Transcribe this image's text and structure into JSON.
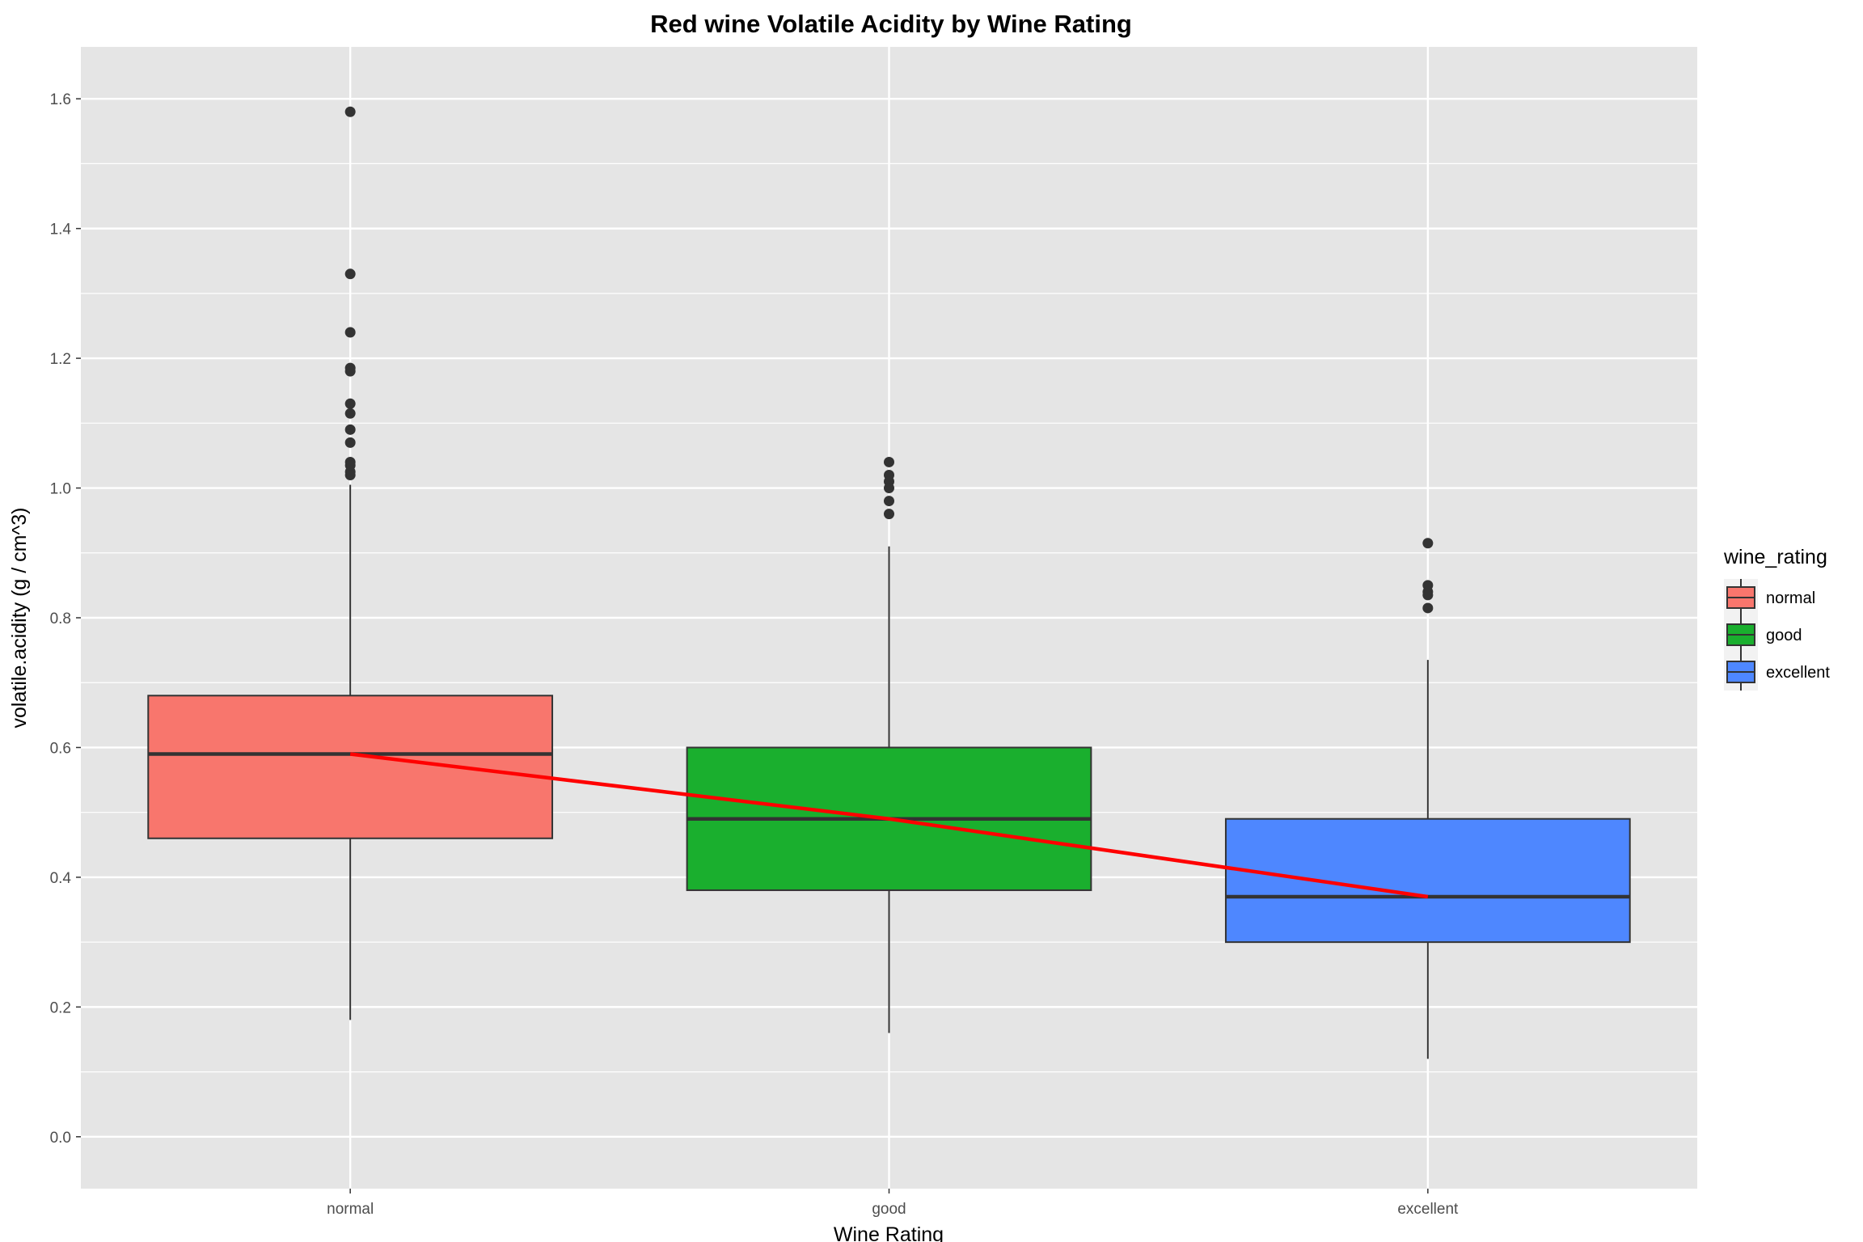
{
  "chart_data": {
    "type": "box",
    "title": "Red wine Volatile Acidity by Wine Rating",
    "xlabel": "Wine Rating",
    "ylabel": "volatile.acidity (g / cm^3)",
    "ylim": [
      -0.08,
      1.68
    ],
    "y_ticks": [
      "0.0",
      "0.2",
      "0.4",
      "0.6",
      "0.8",
      "1.0",
      "1.2",
      "1.4",
      "1.6"
    ],
    "categories": [
      "normal",
      "good",
      "excellent"
    ],
    "legend": {
      "title": "wine_rating",
      "position": "right",
      "entries": [
        "normal",
        "good",
        "excellent"
      ]
    },
    "colors": {
      "normal": "#F8766D",
      "good": "#1AAF2E",
      "excellent": "#4E87FF",
      "trend_line": "#FF0000",
      "panel": "#E5E5E5",
      "grid": "#FFFFFF"
    },
    "boxes": [
      {
        "name": "normal",
        "whisker_low": 0.18,
        "q1": 0.46,
        "median": 0.59,
        "q3": 0.68,
        "whisker_high": 1.005,
        "outliers": [
          1.58,
          1.33,
          1.24,
          1.185,
          1.18,
          1.13,
          1.115,
          1.09,
          1.07,
          1.04,
          1.035,
          1.025,
          1.02
        ]
      },
      {
        "name": "good",
        "whisker_low": 0.16,
        "q1": 0.38,
        "median": 0.49,
        "q3": 0.6,
        "whisker_high": 0.91,
        "outliers": [
          1.04,
          1.02,
          1.01,
          1.0,
          0.98,
          0.96
        ]
      },
      {
        "name": "excellent",
        "whisker_low": 0.12,
        "q1": 0.3,
        "median": 0.37,
        "q3": 0.49,
        "whisker_high": 0.735,
        "outliers": [
          0.915,
          0.85,
          0.84,
          0.835,
          0.815
        ]
      }
    ],
    "trend_line": {
      "series": "median",
      "values": [
        0.59,
        0.49,
        0.37
      ]
    },
    "grid": true
  }
}
